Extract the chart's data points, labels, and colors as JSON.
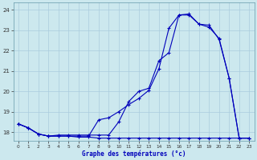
{
  "title": "Graphe des températures (°c)",
  "bg_color": "#cce8ee",
  "grid_color": "#aaccdd",
  "line_color": "#0000bb",
  "ylim": [
    17.55,
    24.35
  ],
  "xlim": [
    -0.5,
    23.5
  ],
  "yticks": [
    18,
    19,
    20,
    21,
    22,
    23,
    24
  ],
  "xticks": [
    0,
    1,
    2,
    3,
    4,
    5,
    6,
    7,
    8,
    9,
    10,
    11,
    12,
    13,
    14,
    15,
    16,
    17,
    18,
    19,
    20,
    21,
    22,
    23
  ],
  "s1_x": [
    0,
    1,
    2,
    3,
    4,
    5,
    6,
    7,
    8,
    9,
    10,
    11,
    12,
    13,
    14,
    15,
    16,
    17,
    18,
    19,
    20,
    21,
    22,
    23
  ],
  "s1_y": [
    18.4,
    18.2,
    17.9,
    17.8,
    17.8,
    17.8,
    17.75,
    17.75,
    17.7,
    17.7,
    17.7,
    17.7,
    17.7,
    17.7,
    17.7,
    17.7,
    17.7,
    17.7,
    17.7,
    17.7,
    17.7,
    17.7,
    17.7,
    17.7
  ],
  "s2_x": [
    0,
    1,
    2,
    3,
    4,
    5,
    6,
    7,
    8,
    9,
    10,
    11,
    12,
    13,
    14,
    15,
    16,
    17,
    18,
    19,
    20,
    21,
    22,
    23
  ],
  "s2_y": [
    18.4,
    18.2,
    17.9,
    17.8,
    17.85,
    17.85,
    17.85,
    17.85,
    17.85,
    17.85,
    18.5,
    19.5,
    20.0,
    20.15,
    21.5,
    21.9,
    23.75,
    23.8,
    23.3,
    23.15,
    22.6,
    20.65,
    17.7,
    17.7
  ],
  "s3_x": [
    0,
    1,
    2,
    3,
    4,
    5,
    6,
    7,
    8,
    9,
    10,
    11,
    12,
    13,
    14,
    15,
    16,
    17,
    18,
    19,
    20,
    21,
    22,
    23
  ],
  "s3_y": [
    18.4,
    18.2,
    17.9,
    17.8,
    17.8,
    17.8,
    17.8,
    17.8,
    18.6,
    18.7,
    19.0,
    19.35,
    19.65,
    20.05,
    21.1,
    23.1,
    23.75,
    23.75,
    23.3,
    23.25,
    22.55,
    20.65,
    17.7,
    17.7
  ]
}
